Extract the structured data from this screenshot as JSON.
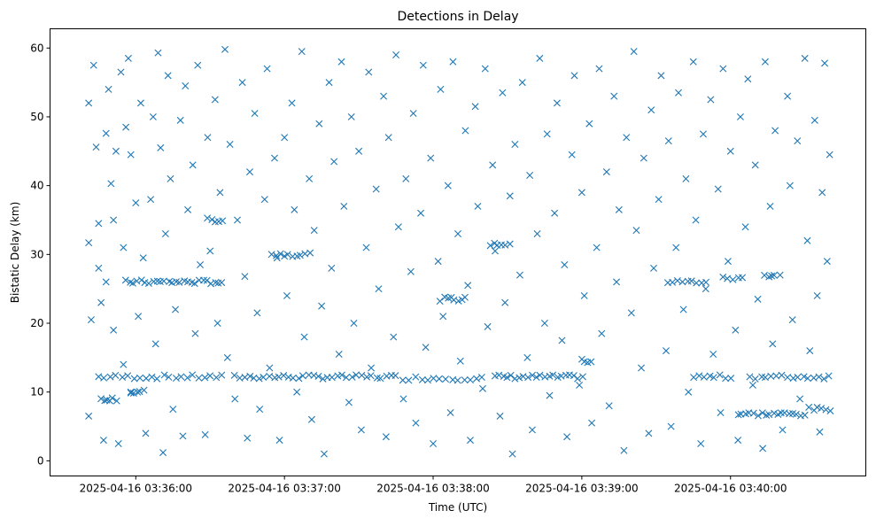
{
  "chart_data": {
    "type": "scatter",
    "title": "Detections in Delay",
    "xlabel": "Time (UTC)",
    "ylabel": "Bistatic Delay (km)",
    "x_unit": "seconds after 2025-04-16 03:35:00",
    "xlim": [
      25.4,
      354.6
    ],
    "ylim": [
      -2.2,
      62.8
    ],
    "grid": false,
    "marker": "x",
    "color": "#1f77b4",
    "x_ticks": [
      {
        "value": 60,
        "label": "2025-04-16 03:36:00"
      },
      {
        "value": 120,
        "label": "2025-04-16 03:37:00"
      },
      {
        "value": 180,
        "label": "2025-04-16 03:38:00"
      },
      {
        "value": 240,
        "label": "2025-04-16 03:39:00"
      },
      {
        "value": 300,
        "label": "2025-04-16 03:40:00"
      }
    ],
    "y_ticks": [
      {
        "value": 0,
        "label": "0"
      },
      {
        "value": 10,
        "label": "10"
      },
      {
        "value": 20,
        "label": "20"
      },
      {
        "value": 30,
        "label": "30"
      },
      {
        "value": 40,
        "label": "40"
      },
      {
        "value": 50,
        "label": "50"
      },
      {
        "value": 60,
        "label": "60"
      }
    ],
    "points": [
      [
        41,
        52
      ],
      [
        42,
        20.5
      ],
      [
        41,
        31.7
      ],
      [
        41,
        6.5
      ],
      [
        43,
        57.5
      ],
      [
        44,
        45.6
      ],
      [
        45,
        28
      ],
      [
        45,
        34.5
      ],
      [
        46,
        23
      ],
      [
        47,
        3
      ],
      [
        48,
        47.6
      ],
      [
        48,
        26
      ],
      [
        49,
        54
      ],
      [
        50,
        40.3
      ],
      [
        51,
        35
      ],
      [
        51,
        19
      ],
      [
        52,
        45
      ],
      [
        53,
        2.5
      ],
      [
        54,
        56.5
      ],
      [
        55,
        31
      ],
      [
        55,
        14
      ],
      [
        56,
        48.5
      ],
      [
        57,
        58.5
      ],
      [
        58,
        44.5
      ],
      [
        58,
        10
      ],
      [
        60,
        37.5
      ],
      [
        61,
        21
      ],
      [
        62,
        52
      ],
      [
        63,
        29.5
      ],
      [
        64,
        4
      ],
      [
        66,
        38
      ],
      [
        67,
        50
      ],
      [
        68,
        17
      ],
      [
        69,
        59.3
      ],
      [
        70,
        45.5
      ],
      [
        71,
        1.2
      ],
      [
        72,
        33
      ],
      [
        73,
        56
      ],
      [
        74,
        41
      ],
      [
        75,
        7.5
      ],
      [
        76,
        22
      ],
      [
        78,
        49.5
      ],
      [
        79,
        3.6
      ],
      [
        80,
        54.5
      ],
      [
        81,
        36.5
      ],
      [
        83,
        43
      ],
      [
        84,
        18.5
      ],
      [
        85,
        57.5
      ],
      [
        86,
        28.5
      ],
      [
        88,
        3.8
      ],
      [
        89,
        47
      ],
      [
        90,
        30.5
      ],
      [
        92,
        52.5
      ],
      [
        93,
        20
      ],
      [
        94,
        39
      ],
      [
        96,
        59.8
      ],
      [
        97,
        15
      ],
      [
        98,
        46
      ],
      [
        100,
        9
      ],
      [
        101,
        35
      ],
      [
        103,
        55
      ],
      [
        104,
        26.8
      ],
      [
        105,
        3.3
      ],
      [
        106,
        42
      ],
      [
        108,
        50.5
      ],
      [
        109,
        21.5
      ],
      [
        110,
        7.5
      ],
      [
        112,
        38
      ],
      [
        113,
        57
      ],
      [
        114,
        13.5
      ],
      [
        116,
        44
      ],
      [
        117,
        29.5
      ],
      [
        118,
        3
      ],
      [
        120,
        47
      ],
      [
        121,
        24
      ],
      [
        123,
        52
      ],
      [
        124,
        36.5
      ],
      [
        125,
        10
      ],
      [
        127,
        59.5
      ],
      [
        128,
        18
      ],
      [
        130,
        41
      ],
      [
        131,
        6
      ],
      [
        132,
        33.5
      ],
      [
        134,
        49
      ],
      [
        135,
        22.5
      ],
      [
        136,
        1
      ],
      [
        138,
        55
      ],
      [
        139,
        28
      ],
      [
        140,
        43.5
      ],
      [
        142,
        15.5
      ],
      [
        143,
        58
      ],
      [
        144,
        37
      ],
      [
        146,
        8.5
      ],
      [
        147,
        50
      ],
      [
        148,
        20
      ],
      [
        150,
        45
      ],
      [
        151,
        4.5
      ],
      [
        153,
        31
      ],
      [
        154,
        56.5
      ],
      [
        155,
        13.5
      ],
      [
        157,
        39.5
      ],
      [
        158,
        25
      ],
      [
        160,
        53
      ],
      [
        161,
        3.5
      ],
      [
        162,
        47
      ],
      [
        164,
        18
      ],
      [
        165,
        59
      ],
      [
        166,
        34
      ],
      [
        168,
        9
      ],
      [
        169,
        41
      ],
      [
        171,
        27.5
      ],
      [
        172,
        50.5
      ],
      [
        173,
        5.5
      ],
      [
        175,
        36
      ],
      [
        176,
        57.5
      ],
      [
        177,
        16.5
      ],
      [
        179,
        44
      ],
      [
        180,
        2.5
      ],
      [
        182,
        29
      ],
      [
        183,
        54
      ],
      [
        184,
        21
      ],
      [
        186,
        40
      ],
      [
        187,
        7
      ],
      [
        188,
        58
      ],
      [
        190,
        33
      ],
      [
        191,
        14.5
      ],
      [
        193,
        48
      ],
      [
        194,
        25.5
      ],
      [
        195,
        3
      ],
      [
        197,
        51.5
      ],
      [
        198,
        37
      ],
      [
        200,
        10.5
      ],
      [
        201,
        57
      ],
      [
        202,
        19.5
      ],
      [
        204,
        43
      ],
      [
        205,
        30.5
      ],
      [
        207,
        6.5
      ],
      [
        208,
        53.5
      ],
      [
        209,
        23
      ],
      [
        211,
        38.5
      ],
      [
        212,
        1
      ],
      [
        213,
        46
      ],
      [
        215,
        27
      ],
      [
        216,
        55
      ],
      [
        218,
        15
      ],
      [
        219,
        41.5
      ],
      [
        220,
        4.5
      ],
      [
        222,
        33
      ],
      [
        223,
        58.5
      ],
      [
        225,
        20
      ],
      [
        226,
        47.5
      ],
      [
        227,
        9.5
      ],
      [
        229,
        36
      ],
      [
        230,
        52
      ],
      [
        232,
        17.5
      ],
      [
        233,
        28.5
      ],
      [
        234,
        3.5
      ],
      [
        236,
        44.5
      ],
      [
        237,
        56
      ],
      [
        239,
        11
      ],
      [
        240,
        39
      ],
      [
        241,
        24
      ],
      [
        243,
        49
      ],
      [
        244,
        5.5
      ],
      [
        246,
        31
      ],
      [
        247,
        57
      ],
      [
        248,
        18.5
      ],
      [
        250,
        42
      ],
      [
        251,
        8
      ],
      [
        253,
        53
      ],
      [
        254,
        26
      ],
      [
        255,
        36.5
      ],
      [
        257,
        1.5
      ],
      [
        258,
        47
      ],
      [
        260,
        21.5
      ],
      [
        261,
        59.5
      ],
      [
        262,
        33.5
      ],
      [
        264,
        13.5
      ],
      [
        265,
        44
      ],
      [
        267,
        4
      ],
      [
        268,
        51
      ],
      [
        269,
        28
      ],
      [
        271,
        38
      ],
      [
        272,
        56
      ],
      [
        274,
        16
      ],
      [
        275,
        46.5
      ],
      [
        276,
        5
      ],
      [
        278,
        31
      ],
      [
        279,
        53.5
      ],
      [
        281,
        22
      ],
      [
        282,
        41
      ],
      [
        283,
        10
      ],
      [
        285,
        58
      ],
      [
        286,
        35
      ],
      [
        288,
        2.5
      ],
      [
        289,
        47.5
      ],
      [
        290,
        25
      ],
      [
        292,
        52.5
      ],
      [
        293,
        15.5
      ],
      [
        295,
        39.5
      ],
      [
        296,
        7
      ],
      [
        297,
        57
      ],
      [
        299,
        29
      ],
      [
        300,
        45
      ],
      [
        302,
        19
      ],
      [
        303,
        3
      ],
      [
        304,
        50
      ],
      [
        306,
        34
      ],
      [
        307,
        55.5
      ],
      [
        309,
        11
      ],
      [
        310,
        43
      ],
      [
        311,
        23.5
      ],
      [
        313,
        1.8
      ],
      [
        314,
        58
      ],
      [
        316,
        37
      ],
      [
        317,
        17
      ],
      [
        318,
        48
      ],
      [
        320,
        27
      ],
      [
        321,
        4.5
      ],
      [
        323,
        53
      ],
      [
        324,
        40
      ],
      [
        325,
        20.5
      ],
      [
        327,
        46.5
      ],
      [
        328,
        9
      ],
      [
        330,
        58.5
      ],
      [
        331,
        32
      ],
      [
        332,
        16
      ],
      [
        334,
        49.5
      ],
      [
        335,
        24
      ],
      [
        336,
        4.2
      ],
      [
        337,
        39
      ],
      [
        338,
        57.8
      ],
      [
        339,
        29
      ],
      [
        340,
        44.5
      ]
    ],
    "clusters": [
      {
        "delay": 12.2,
        "t_start": 45,
        "t_end": 95,
        "count": 22
      },
      {
        "delay": 12.2,
        "t_start": 100,
        "t_end": 165,
        "count": 34
      },
      {
        "delay": 12.0,
        "t_start": 168,
        "t_end": 200,
        "count": 14
      },
      {
        "delay": 12.2,
        "t_start": 205,
        "t_end": 240,
        "count": 22
      },
      {
        "delay": 12.2,
        "t_start": 285,
        "t_end": 300,
        "count": 8
      },
      {
        "delay": 12.2,
        "t_start": 308,
        "t_end": 340,
        "count": 16
      },
      {
        "delay": 9.0,
        "t_start": 46,
        "t_end": 52,
        "count": 6
      },
      {
        "delay": 10.0,
        "t_start": 58,
        "t_end": 63,
        "count": 5
      },
      {
        "delay": 26.0,
        "t_start": 56,
        "t_end": 95,
        "count": 26
      },
      {
        "delay": 35.0,
        "t_start": 89,
        "t_end": 95,
        "count": 5
      },
      {
        "delay": 30.0,
        "t_start": 115,
        "t_end": 130,
        "count": 10
      },
      {
        "delay": 23.5,
        "t_start": 183,
        "t_end": 193,
        "count": 8
      },
      {
        "delay": 31.5,
        "t_start": 203,
        "t_end": 211,
        "count": 6
      },
      {
        "delay": 14.5,
        "t_start": 240,
        "t_end": 244,
        "count": 4
      },
      {
        "delay": 26.0,
        "t_start": 275,
        "t_end": 290,
        "count": 9
      },
      {
        "delay": 26.5,
        "t_start": 297,
        "t_end": 305,
        "count": 5
      },
      {
        "delay": 27.0,
        "t_start": 314,
        "t_end": 318,
        "count": 4
      },
      {
        "delay": 6.8,
        "t_start": 303,
        "t_end": 330,
        "count": 18
      },
      {
        "delay": 7.5,
        "t_start": 332,
        "t_end": 340,
        "count": 6
      }
    ]
  }
}
